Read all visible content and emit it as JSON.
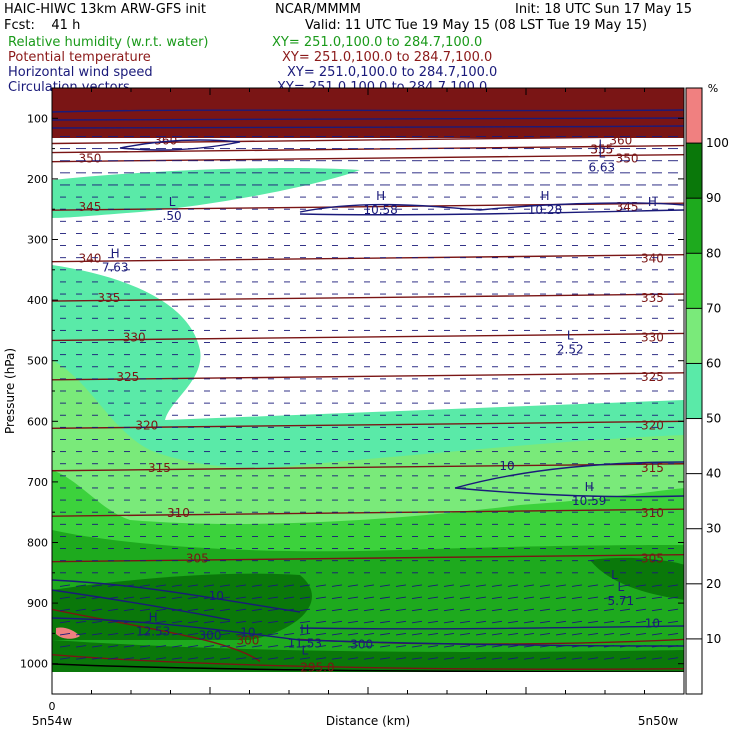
{
  "header": {
    "model": "HAIC-HIWC 13km ARW-GFS init",
    "org": "NCAR/MMMM",
    "init": "Init: 18 UTC Sun 17 May 15",
    "fcst": "Fcst:    41 h",
    "valid": "Valid: 11 UTC Tue 19 May 15 (08 LST Tue 19 May 15)"
  },
  "fields": [
    {
      "label": "Relative humidity (w.r.t. water)",
      "xy": "XY= 251.0,100.0 to 284.7,100.0",
      "color": "#1a9a1a"
    },
    {
      "label": "Potential temperature",
      "xy": "XY= 251.0,100.0 to 284.7,100.0",
      "color": "#8b1a1a"
    },
    {
      "label": "Horizontal wind speed",
      "xy": "XY= 251.0,100.0 to 284.7,100.0",
      "color": "#1a1a7a"
    },
    {
      "label": "Circulation vectors",
      "xy": "XY= 251.0,100.0 to 284.7,100.0",
      "color": "#1a1a7a"
    }
  ],
  "chart_data": {
    "type": "cross-section",
    "xlabel": "Distance (km)",
    "ylabel": "Pressure (hPa)",
    "x_ticks": {
      "origin": "0"
    },
    "x_end_labels": {
      "left": "5n54w",
      "right": "5n50w"
    },
    "y_ticks": [
      100,
      200,
      300,
      400,
      500,
      600,
      700,
      800,
      900,
      1000
    ],
    "ylim": [
      1050,
      50
    ],
    "colorbar": {
      "unit": "%",
      "ticks": [
        10,
        20,
        30,
        40,
        50,
        60,
        70,
        80,
        90,
        100
      ],
      "bands": [
        {
          "from": 0,
          "to": 50,
          "color": "#ffffff"
        },
        {
          "from": 50,
          "to": 60,
          "color": "#5aeaa8"
        },
        {
          "from": 60,
          "to": 70,
          "color": "#7aea7a"
        },
        {
          "from": 70,
          "to": 80,
          "color": "#3cd23c"
        },
        {
          "from": 80,
          "to": 90,
          "color": "#1eaa1e"
        },
        {
          "from": 90,
          "to": 100,
          "color": "#0a780a"
        },
        {
          "from": 100,
          "to": 110,
          "color": "#f08080"
        }
      ]
    },
    "theta_isolines": [
      {
        "label": "360",
        "p": 135
      },
      {
        "label": "355",
        "p": 150
      },
      {
        "label": "350",
        "p": 165
      },
      {
        "label": "345",
        "p": 245
      },
      {
        "label": "340",
        "p": 330
      },
      {
        "label": "335",
        "p": 395
      },
      {
        "label": "330",
        "p": 460
      },
      {
        "label": "325",
        "p": 525
      },
      {
        "label": "320",
        "p": 605
      },
      {
        "label": "315",
        "p": 675
      },
      {
        "label": "310",
        "p": 750
      },
      {
        "label": "305",
        "p": 825
      },
      {
        "label": "300",
        "p": 960
      },
      {
        "label": "295.0",
        "p": 1005
      }
    ],
    "wind_annotations": [
      {
        "label": "H",
        "value": "10.58",
        "x": 0.52,
        "p": 235
      },
      {
        "label": "H",
        "value": "10.28",
        "x": 0.78,
        "p": 235
      },
      {
        "label": "L",
        "value": ".50",
        "x": 0.19,
        "p": 245
      },
      {
        "label": "L",
        "value": "6.63",
        "x": 0.87,
        "p": 165
      },
      {
        "label": "H",
        "value": "7.63",
        "x": 0.1,
        "p": 330
      },
      {
        "label": "L",
        "value": "2.52",
        "x": 0.82,
        "p": 465
      },
      {
        "label": "H",
        "value": "10.59",
        "x": 0.85,
        "p": 715
      },
      {
        "label": "L",
        "value": "5.71",
        "x": 0.9,
        "p": 880
      },
      {
        "label": "H",
        "value": "12.53",
        "x": 0.16,
        "p": 930
      },
      {
        "label": "H",
        "value": "11.53",
        "x": 0.4,
        "p": 950
      },
      {
        "label": "L",
        "value": "",
        "x": 0.4,
        "p": 985
      },
      {
        "label": "10",
        "value": "",
        "x": 0.72,
        "p": 680
      },
      {
        "label": "10",
        "value": "",
        "x": 0.26,
        "p": 895
      },
      {
        "label": "10",
        "value": "",
        "x": 0.31,
        "p": 955
      },
      {
        "label": "10",
        "value": "",
        "x": 0.95,
        "p": 940
      },
      {
        "label": "300",
        "value": "",
        "x": 0.25,
        "p": 960
      },
      {
        "label": "300",
        "value": "",
        "x": 0.49,
        "p": 975
      },
      {
        "label": "H",
        "value": "",
        "x": 0.95,
        "p": 245
      },
      {
        "label": "L",
        "value": "",
        "x": 0.87,
        "p": 150
      },
      {
        "label": "L",
        "value": "",
        "x": 0.89,
        "p": 860
      }
    ]
  }
}
